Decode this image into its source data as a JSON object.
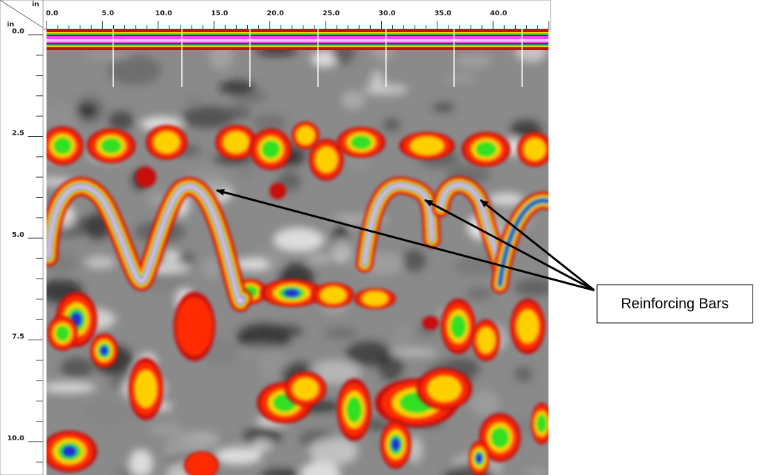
{
  "header": {
    "x_unit": "in",
    "y_unit": "in"
  },
  "x_axis": {
    "labels": [
      "0.0",
      "5.0",
      "10.0",
      "15.0",
      "20.0",
      "25.0",
      "30.0",
      "35.0",
      "40.0"
    ]
  },
  "y_axis": {
    "labels": [
      "0.0",
      "2.5",
      "5.0",
      "7.5",
      "10.0"
    ]
  },
  "annotation": {
    "label": "Reinforcing Bars"
  }
}
